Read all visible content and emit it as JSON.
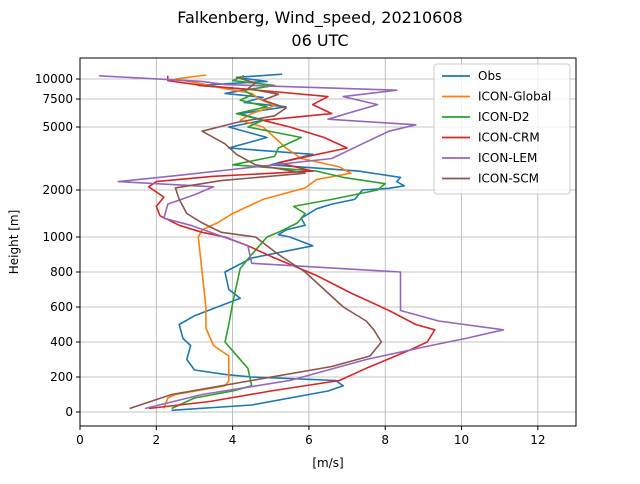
{
  "chart_data": {
    "type": "line",
    "title": "Falkenberg, Wind_speed, 20210608",
    "subtitle": "06 UTC",
    "xlabel": "[m/s]",
    "ylabel": "Height [m]",
    "xlim": [
      0,
      13
    ],
    "x_ticks": [
      0,
      2,
      4,
      6,
      8,
      10,
      12
    ],
    "y_ticks": [
      {
        "value": 0,
        "label": "0"
      },
      {
        "value": 200,
        "label": "200"
      },
      {
        "value": 400,
        "label": "400"
      },
      {
        "value": 600,
        "label": "600"
      },
      {
        "value": 800,
        "label": "800"
      },
      {
        "value": 1000,
        "label": "1000"
      },
      {
        "value": 2000,
        "label": "2000"
      },
      {
        "value": 5000,
        "label": "5000"
      },
      {
        "value": 7500,
        "label": "7500"
      },
      {
        "value": 10000,
        "label": "10000"
      }
    ],
    "y_scale": "piecewise (linear 0–1000 m, compressed above 1000 m)",
    "grid": true,
    "legend_position": "upper right",
    "series": [
      {
        "name": "Obs",
        "color": "#1f77b4",
        "points": [
          [
            2.4,
            10
          ],
          [
            4.5,
            40
          ],
          [
            6.5,
            120
          ],
          [
            6.9,
            150
          ],
          [
            6.7,
            180
          ],
          [
            4.5,
            200
          ],
          [
            3.8,
            215
          ],
          [
            3,
            240
          ],
          [
            2.8,
            300
          ],
          [
            2.9,
            380
          ],
          [
            2.7,
            420
          ],
          [
            2.6,
            500
          ],
          [
            3,
            550
          ],
          [
            4.2,
            650
          ],
          [
            3.9,
            700
          ],
          [
            3.8,
            800
          ],
          [
            4.5,
            880
          ],
          [
            6.1,
            950
          ],
          [
            5.5,
            1000
          ],
          [
            5.2,
            1050
          ],
          [
            5.4,
            1150
          ],
          [
            5.9,
            1250
          ],
          [
            5.8,
            1400
          ],
          [
            6.2,
            1600
          ],
          [
            6.6,
            1700
          ],
          [
            7.2,
            1800
          ],
          [
            7.4,
            2000
          ],
          [
            8.1,
            2080
          ],
          [
            8.5,
            2200
          ],
          [
            8.3,
            2400
          ],
          [
            8.4,
            2600
          ],
          [
            7.3,
            2900
          ],
          [
            5,
            3200
          ],
          [
            6.1,
            3700
          ],
          [
            3.9,
            4000
          ],
          [
            4.9,
            4500
          ],
          [
            3.9,
            5000
          ],
          [
            4.8,
            5600
          ],
          [
            4.2,
            6200
          ],
          [
            5.4,
            6800
          ],
          [
            4.3,
            7200
          ],
          [
            4.8,
            7700
          ],
          [
            3.8,
            8200
          ],
          [
            4.4,
            8700
          ],
          [
            3.1,
            9200
          ],
          [
            4.9,
            9700
          ],
          [
            4.1,
            10200
          ],
          [
            5.3,
            10600
          ]
        ]
      },
      {
        "name": "ICON-Global",
        "color": "#ff7f0e",
        "points": [
          [
            2.2,
            20
          ],
          [
            2.3,
            80
          ],
          [
            2.5,
            100
          ],
          [
            3.8,
            150
          ],
          [
            3.9,
            180
          ],
          [
            3.9,
            320
          ],
          [
            3.5,
            380
          ],
          [
            3.3,
            480
          ],
          [
            3.3,
            600
          ],
          [
            3.25,
            700
          ],
          [
            3.2,
            800
          ],
          [
            3.15,
            900
          ],
          [
            3.1,
            1000
          ],
          [
            3.2,
            1150
          ],
          [
            3.6,
            1300
          ],
          [
            4,
            1500
          ],
          [
            4.8,
            1800
          ],
          [
            5.9,
            2100
          ],
          [
            6.2,
            2500
          ],
          [
            7.1,
            2800
          ],
          [
            6.8,
            3100
          ],
          [
            5.8,
            3500
          ],
          [
            5.4,
            4000
          ],
          [
            5.1,
            4500
          ],
          [
            4.8,
            5000
          ],
          [
            4.2,
            5600
          ],
          [
            4.5,
            6200
          ],
          [
            5.1,
            6900
          ],
          [
            4.7,
            7500
          ],
          [
            4.5,
            8200
          ],
          [
            3.8,
            8800
          ],
          [
            3.2,
            9400
          ],
          [
            2.5,
            10000
          ],
          [
            3.3,
            10500
          ]
        ]
      },
      {
        "name": "ICON-D2",
        "color": "#2ca02c",
        "points": [
          [
            2.4,
            20
          ],
          [
            3,
            80
          ],
          [
            4,
            120
          ],
          [
            4.5,
            150
          ],
          [
            4.4,
            250
          ],
          [
            4,
            350
          ],
          [
            3.8,
            400
          ],
          [
            3.9,
            500
          ],
          [
            4,
            620
          ],
          [
            4.1,
            720
          ],
          [
            4.2,
            820
          ],
          [
            4.5,
            900
          ],
          [
            4.9,
            1000
          ],
          [
            5.2,
            1100
          ],
          [
            5.7,
            1300
          ],
          [
            5.9,
            1500
          ],
          [
            5.6,
            1650
          ],
          [
            6.6,
            1800
          ],
          [
            7.8,
            2000
          ],
          [
            8,
            2300
          ],
          [
            6.9,
            2600
          ],
          [
            6.2,
            2900
          ],
          [
            4,
            3200
          ],
          [
            5.1,
            3600
          ],
          [
            5.2,
            4000
          ],
          [
            5.8,
            4500
          ],
          [
            4.4,
            5000
          ],
          [
            4.8,
            5600
          ],
          [
            4.1,
            6200
          ],
          [
            4.9,
            6800
          ],
          [
            4.2,
            7400
          ],
          [
            4.5,
            8000
          ],
          [
            4.3,
            8600
          ],
          [
            5.1,
            9200
          ],
          [
            4,
            9800
          ],
          [
            4.3,
            10400
          ]
        ]
      },
      {
        "name": "ICON-CRM",
        "color": "#d62728",
        "points": [
          [
            1.8,
            20
          ],
          [
            3.4,
            60
          ],
          [
            5,
            120
          ],
          [
            6.8,
            180
          ],
          [
            7.5,
            250
          ],
          [
            8.6,
            350
          ],
          [
            9.1,
            400
          ],
          [
            9.3,
            470
          ],
          [
            8.8,
            500
          ],
          [
            8.1,
            580
          ],
          [
            7.1,
            680
          ],
          [
            6.2,
            780
          ],
          [
            5.1,
            880
          ],
          [
            4.4,
            950
          ],
          [
            3.8,
            1000
          ],
          [
            3.2,
            1100
          ],
          [
            2.6,
            1250
          ],
          [
            2.1,
            1450
          ],
          [
            2,
            1650
          ],
          [
            2.2,
            1850
          ],
          [
            1.8,
            2150
          ],
          [
            2,
            2400
          ],
          [
            3.5,
            2650
          ],
          [
            6.1,
            2900
          ],
          [
            5.2,
            3300
          ],
          [
            7,
            4000
          ],
          [
            6.4,
            4500
          ],
          [
            5.5,
            5000
          ],
          [
            4.8,
            5600
          ],
          [
            6.6,
            6200
          ],
          [
            6.1,
            7000
          ],
          [
            6.5,
            7800
          ],
          [
            4.9,
            8500
          ],
          [
            3.2,
            9200
          ],
          [
            2.3,
            9800
          ],
          [
            2.3,
            10400
          ]
        ]
      },
      {
        "name": "ICON-LEM",
        "color": "#9467bd",
        "points": [
          [
            1.7,
            20
          ],
          [
            3.2,
            100
          ],
          [
            5.5,
            180
          ],
          [
            7.5,
            300
          ],
          [
            9.2,
            380
          ],
          [
            10.1,
            420
          ],
          [
            11.1,
            470
          ],
          [
            9.4,
            520
          ],
          [
            8.4,
            580
          ],
          [
            8.4,
            800
          ],
          [
            4.5,
            850
          ],
          [
            4.4,
            950
          ],
          [
            3.6,
            1050
          ],
          [
            2.9,
            1250
          ],
          [
            2.2,
            1400
          ],
          [
            2.3,
            1700
          ],
          [
            3,
            1900
          ],
          [
            3.5,
            2150
          ],
          [
            1,
            2400
          ],
          [
            2.6,
            2700
          ],
          [
            4.1,
            3000
          ],
          [
            6.6,
            3500
          ],
          [
            7.4,
            4200
          ],
          [
            8.1,
            4800
          ],
          [
            8.8,
            5200
          ],
          [
            6.5,
            5700
          ],
          [
            7.1,
            6300
          ],
          [
            7.8,
            7000
          ],
          [
            6.9,
            7800
          ],
          [
            8.3,
            8600
          ],
          [
            3.8,
            9300
          ],
          [
            3.2,
            9700
          ],
          [
            0.5,
            10400
          ]
        ]
      },
      {
        "name": "ICON-SCM",
        "color": "#8c564b",
        "points": [
          [
            1.3,
            20
          ],
          [
            2.4,
            100
          ],
          [
            4.5,
            180
          ],
          [
            6.6,
            260
          ],
          [
            7.6,
            320
          ],
          [
            7.9,
            400
          ],
          [
            7.7,
            470
          ],
          [
            7.5,
            520
          ],
          [
            6.9,
            600
          ],
          [
            6.4,
            700
          ],
          [
            5.9,
            800
          ],
          [
            5.2,
            900
          ],
          [
            4.6,
            1000
          ],
          [
            3.7,
            1100
          ],
          [
            3.2,
            1300
          ],
          [
            2.8,
            1500
          ],
          [
            2.6,
            1800
          ],
          [
            2.5,
            2100
          ],
          [
            3.7,
            2450
          ],
          [
            5.9,
            2800
          ],
          [
            4.6,
            3200
          ],
          [
            4.1,
            3700
          ],
          [
            3.8,
            4200
          ],
          [
            3.2,
            4800
          ],
          [
            4.1,
            5400
          ],
          [
            5.1,
            6000
          ],
          [
            5.4,
            6700
          ],
          [
            4.8,
            7400
          ],
          [
            5.2,
            8100
          ],
          [
            4.4,
            8800
          ],
          [
            4.6,
            9500
          ],
          [
            4.1,
            10200
          ]
        ]
      }
    ]
  }
}
